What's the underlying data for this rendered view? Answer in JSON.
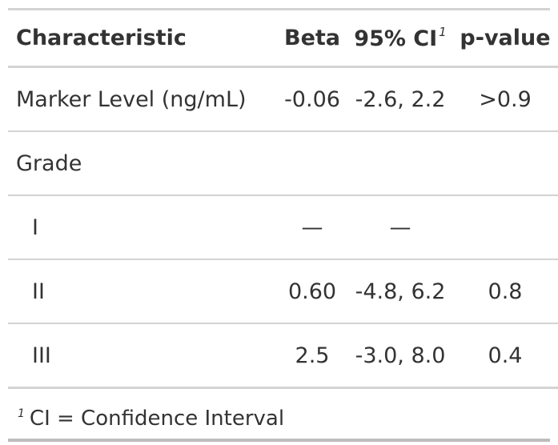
{
  "table": {
    "headers": {
      "characteristic": "Characteristic",
      "beta": "Beta",
      "ci": "95% CI",
      "ci_footnote_mark": "1",
      "p_value": "p-value"
    },
    "rows": [
      {
        "label": "Marker Level (ng/mL)",
        "beta": "-0.06",
        "ci": "-2.6, 2.2",
        "p": ">0.9"
      },
      {
        "label": "Grade",
        "beta": "",
        "ci": "",
        "p": ""
      },
      {
        "label": "I",
        "beta": "—",
        "ci": "—",
        "p": ""
      },
      {
        "label": "II",
        "beta": "0.60",
        "ci": "-4.8, 6.2",
        "p": "0.8"
      },
      {
        "label": "III",
        "beta": "2.5",
        "ci": "-3.0, 8.0",
        "p": "0.4"
      }
    ]
  },
  "footnote": {
    "mark": "1",
    "text": "CI = Confidence Interval"
  }
}
